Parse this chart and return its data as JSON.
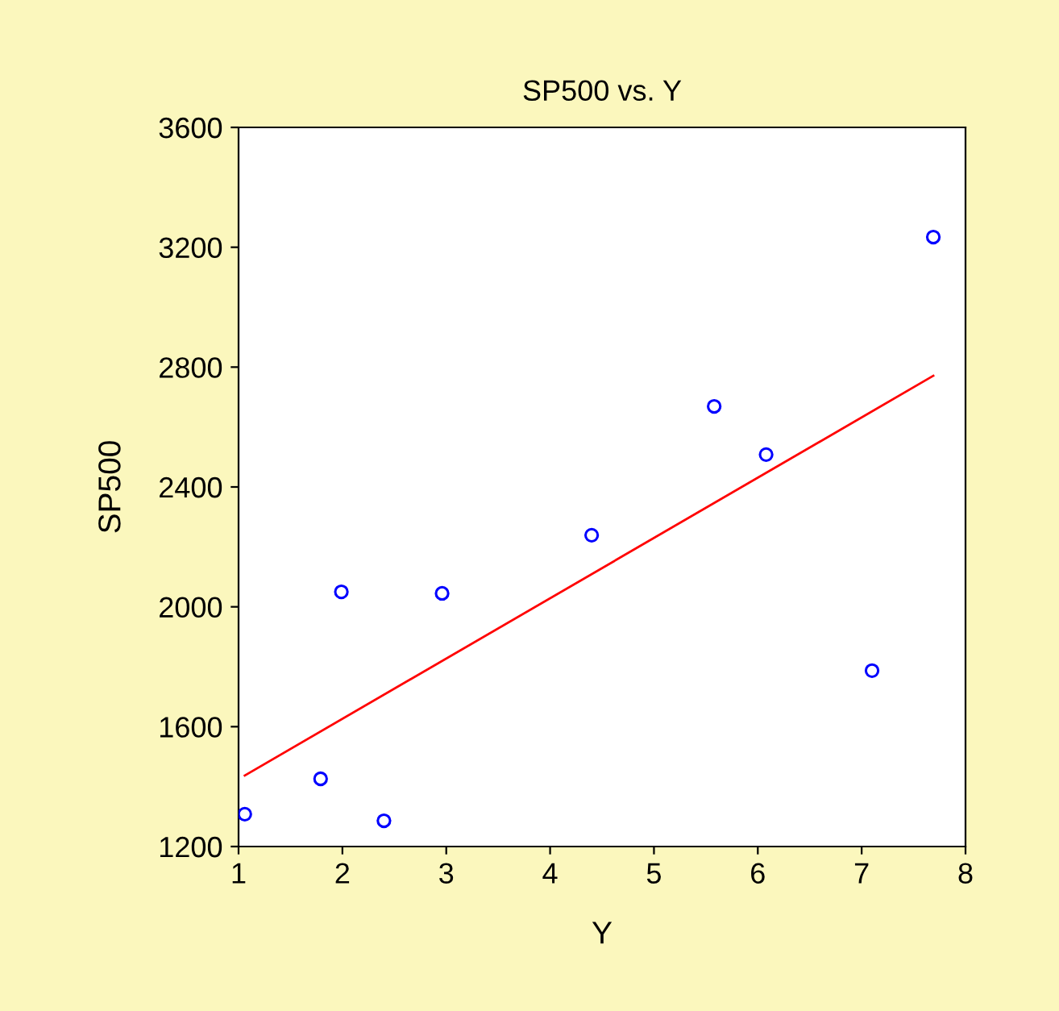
{
  "chart_data": {
    "type": "scatter",
    "title": "SP500 vs. Y",
    "xlabel": "Y",
    "ylabel": "SP500",
    "xlim": [
      1,
      8
    ],
    "xticks": [
      1,
      2,
      3,
      4,
      5,
      6,
      7,
      8
    ],
    "ylim": [
      1200,
      3600
    ],
    "yticks": [
      1200,
      1600,
      2000,
      2400,
      2800,
      3200,
      3600
    ],
    "grid": false,
    "series": [
      {
        "color": "#0000ff",
        "marker": "circle",
        "x": [
          1.06,
          1.79,
          1.99,
          2.4,
          2.96,
          4.4,
          5.58,
          6.08,
          7.1,
          7.69
        ],
        "values": [
          1308,
          1426,
          2050,
          1286,
          2045,
          2239,
          2669,
          2508,
          1787,
          3234
        ]
      },
      {
        "type": "line",
        "marker": "none",
        "color": "#ff0000",
        "x": [
          1.06,
          7.69
        ],
        "values": [
          1437,
          2771
        ]
      }
    ]
  }
}
